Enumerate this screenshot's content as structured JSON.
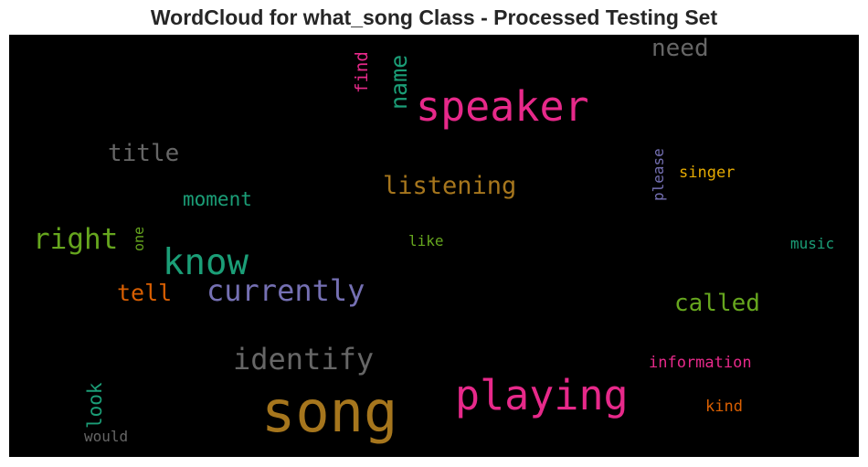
{
  "title": "WordCloud for what_song Class - Processed Testing Set",
  "words": [
    {
      "text": "song",
      "color": "#a6761d",
      "orientation": "horizontal"
    },
    {
      "text": "speaker",
      "color": "#e7298a",
      "orientation": "horizontal"
    },
    {
      "text": "playing",
      "color": "#e7298a",
      "orientation": "horizontal"
    },
    {
      "text": "know",
      "color": "#1b9e77",
      "orientation": "horizontal"
    },
    {
      "text": "currently",
      "color": "#7570b3",
      "orientation": "horizontal"
    },
    {
      "text": "identify",
      "color": "#666666",
      "orientation": "horizontal"
    },
    {
      "text": "right",
      "color": "#66a61e",
      "orientation": "horizontal"
    },
    {
      "text": "listening",
      "color": "#a6761d",
      "orientation": "horizontal"
    },
    {
      "text": "called",
      "color": "#66a61e",
      "orientation": "horizontal"
    },
    {
      "text": "title",
      "color": "#666666",
      "orientation": "horizontal"
    },
    {
      "text": "need",
      "color": "#666666",
      "orientation": "horizontal"
    },
    {
      "text": "name",
      "color": "#1b9e77",
      "orientation": "vertical"
    },
    {
      "text": "tell",
      "color": "#d95f02",
      "orientation": "horizontal"
    },
    {
      "text": "moment",
      "color": "#1b9e77",
      "orientation": "horizontal"
    },
    {
      "text": "look",
      "color": "#1b9e77",
      "orientation": "vertical"
    },
    {
      "text": "find",
      "color": "#e7298a",
      "orientation": "vertical"
    },
    {
      "text": "please",
      "color": "#7570b3",
      "orientation": "vertical"
    },
    {
      "text": "singer",
      "color": "#e6ab02",
      "orientation": "horizontal"
    },
    {
      "text": "information",
      "color": "#e7298a",
      "orientation": "horizontal"
    },
    {
      "text": "kind",
      "color": "#d95f02",
      "orientation": "horizontal"
    },
    {
      "text": "music",
      "color": "#1b9e77",
      "orientation": "horizontal"
    },
    {
      "text": "like",
      "color": "#66a61e",
      "orientation": "horizontal"
    },
    {
      "text": "one",
      "color": "#66a61e",
      "orientation": "vertical"
    },
    {
      "text": "would",
      "color": "#666666",
      "orientation": "horizontal"
    }
  ]
}
